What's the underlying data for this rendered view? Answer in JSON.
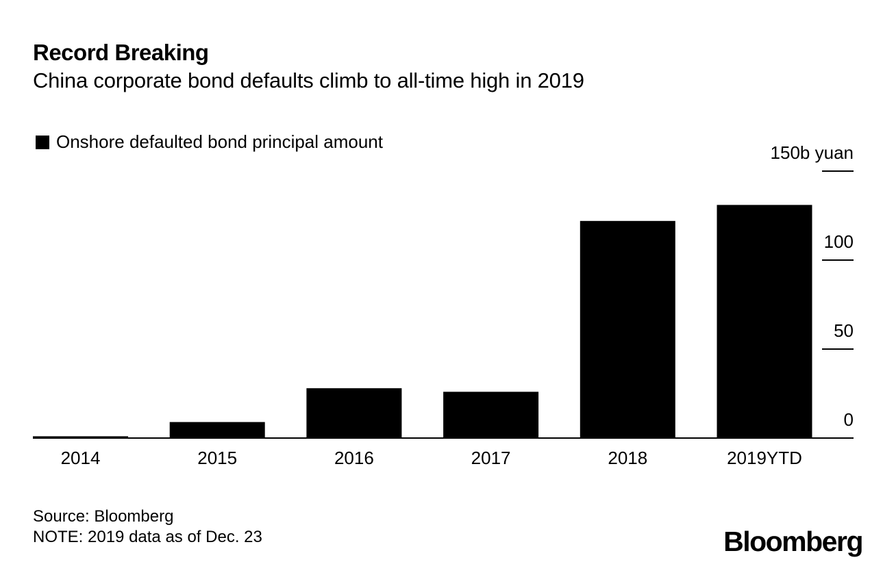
{
  "header": {
    "title": "Record Breaking",
    "subtitle": "China corporate bond defaults climb to all-time high in 2019"
  },
  "legend": {
    "label": "Onshore defaulted bond principal amount",
    "color": "#000000"
  },
  "footer": {
    "source": "Source: Bloomberg",
    "note": "NOTE: 2019 data as of Dec. 23",
    "logo": "Bloomberg"
  },
  "chart_data": {
    "type": "bar",
    "title": "Record Breaking",
    "subtitle": "China corporate bond defaults climb to all-time high in 2019",
    "categories": [
      "2014",
      "2015",
      "2016",
      "2017",
      "2018",
      "2019YTD"
    ],
    "series": [
      {
        "name": "Onshore defaulted bond principal amount",
        "values": [
          1,
          9,
          28,
          26,
          122,
          131
        ],
        "color": "#000000"
      }
    ],
    "y_axis": {
      "min": 0,
      "max": 150,
      "ticks": [
        0,
        50,
        100,
        150
      ],
      "tick_labels": [
        "0",
        "50",
        "100",
        "150b yuan"
      ],
      "position": "right"
    },
    "xlabel": "",
    "ylabel": "",
    "grid": false,
    "legend_position": "top-left"
  }
}
